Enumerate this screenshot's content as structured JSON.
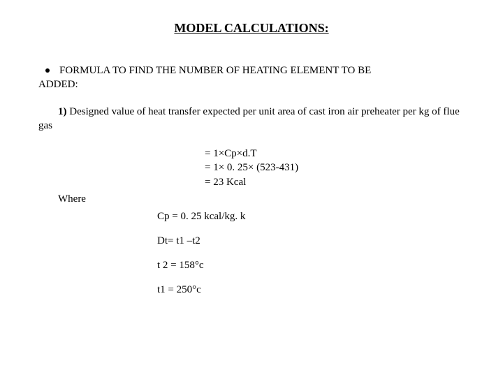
{
  "title": "MODEL CALCULATIONS:",
  "bullet": {
    "text_a": "FORMULA TO FIND THE NUMBER OF HEATING ELEMENT TO BE",
    "text_b": "ADDED:"
  },
  "item": {
    "num": "1)",
    "line_a": "Designed value of heat transfer expected per unit area of cast iron air preheater per kg of flue",
    "line_b": "gas"
  },
  "equations": {
    "e1": "= 1×Cp×d.T",
    "e2": "= 1× 0. 25× (523-431)",
    "e3": "= 23 Kcal"
  },
  "where_label": "Where",
  "defs": {
    "d1": "Cp = 0. 25 kcal/kg. k",
    "d2": "Dt= t1 –t2",
    "d3": "t 2   =  158°c",
    "d4": "t1 = 250°c"
  }
}
